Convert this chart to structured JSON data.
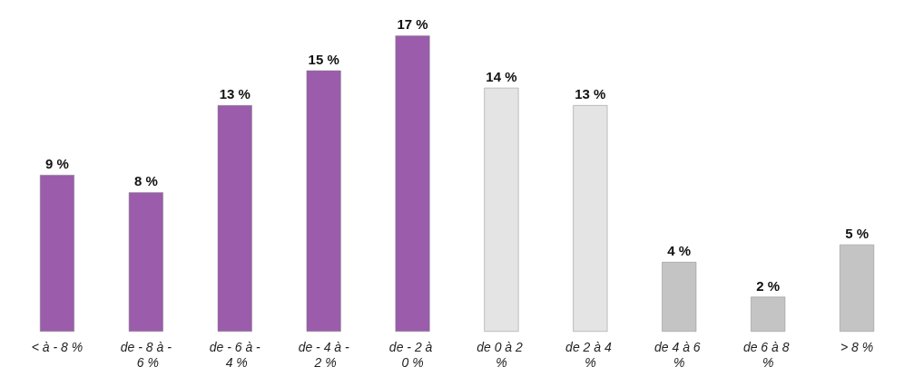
{
  "chart_data": {
    "type": "bar",
    "categories": [
      "< à - 8 %",
      "de - 8 à - 6 %",
      "de - 6 à - 4 %",
      "de - 4 à - 2 %",
      "de - 2 à 0 %",
      "de 0 à 2 %",
      "de 2 à 4 %",
      "de 4 à 6 %",
      "de 6 à 8 %",
      "> 8 %"
    ],
    "values": [
      9,
      8,
      13,
      15,
      17,
      14,
      13,
      4,
      2,
      5
    ],
    "value_labels": [
      "9 %",
      "8 %",
      "13 %",
      "15 %",
      "17 %",
      "14 %",
      "13 %",
      "4 %",
      "2 %",
      "5 %"
    ],
    "colors": [
      "#9a5cab",
      "#9a5cab",
      "#9a5cab",
      "#9a5cab",
      "#9a5cab",
      "#e4e4e4",
      "#e4e4e4",
      "#c4c4c4",
      "#c4c4c4",
      "#c4c4c4"
    ]
  }
}
